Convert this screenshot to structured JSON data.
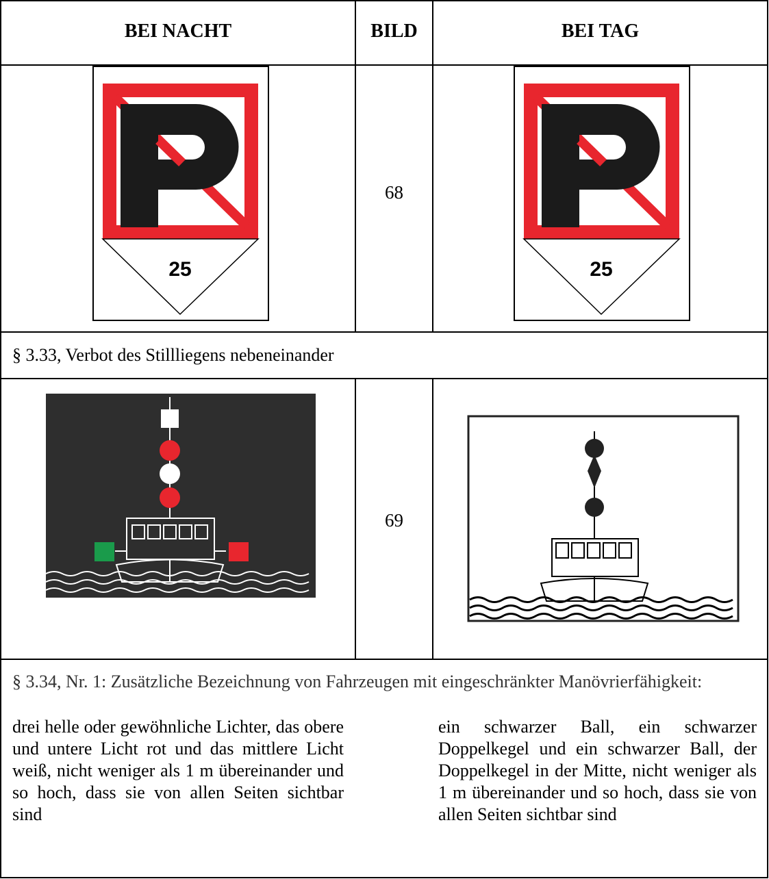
{
  "table": {
    "header": [
      "BEI NACHT",
      "BILD",
      "BEI TAG"
    ],
    "rows": [
      {
        "bild": 68,
        "sign_number_night": 25,
        "sign_number_day": 25,
        "caption": "§ 3.33, Verbot des Stillliegens nebeneinander"
      },
      {
        "bild": 69,
        "caption": "§ 3.34, Nr. 1: Zusätzliche Bezeichnung von Fahrzeugen mit eingeschränkter Manöv­rierfähigkeit:",
        "night_text": "drei helle oder gewöhnliche Lichter, das obere und untere Licht rot und das mittlere Licht weiß, nicht weniger als 1 m übereinander und so hoch, dass sie von allen Seiten sichtbar sind",
        "day_text": "ein schwarzer Ball, ein schwarzer Doppelkegel und ein schwarzer Ball, der Doppelkegel in der Mitte, nicht weniger als 1 m übereinander und so hoch, dass sie von allen Seiten sich­tbar sind"
      }
    ]
  }
}
